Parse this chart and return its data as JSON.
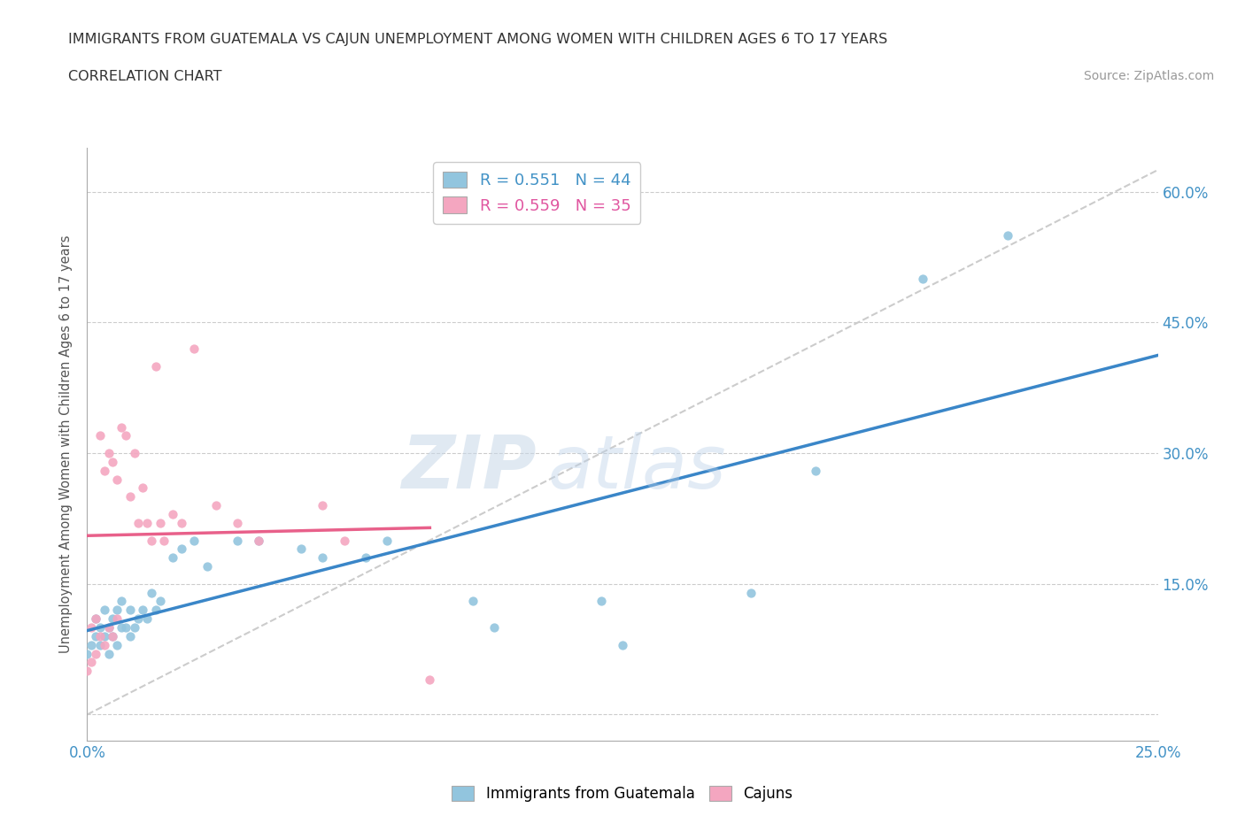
{
  "title_line1": "IMMIGRANTS FROM GUATEMALA VS CAJUN UNEMPLOYMENT AMONG WOMEN WITH CHILDREN AGES 6 TO 17 YEARS",
  "title_line2": "CORRELATION CHART",
  "source_text": "Source: ZipAtlas.com",
  "ylabel": "Unemployment Among Women with Children Ages 6 to 17 years",
  "xlim": [
    0.0,
    0.25
  ],
  "ylim": [
    -0.03,
    0.65
  ],
  "xticks": [
    0.0,
    0.05,
    0.1,
    0.15,
    0.2,
    0.25
  ],
  "xtick_labels": [
    "0.0%",
    "",
    "",
    "",
    "",
    "25.0%"
  ],
  "yticks": [
    0.0,
    0.15,
    0.3,
    0.45,
    0.6
  ],
  "ytick_labels": [
    "",
    "15.0%",
    "30.0%",
    "45.0%",
    "60.0%"
  ],
  "legend_entry1": "R = 0.551   N = 44",
  "legend_entry2": "R = 0.559   N = 35",
  "color_blue": "#92c5de",
  "color_pink": "#f4a6c0",
  "color_trendline_blue": "#3a86c8",
  "color_trendline_pink": "#e8608a",
  "color_trendline_diag": "#cccccc",
  "watermark_zip": "ZIP",
  "watermark_atlas": "atlas",
  "guatemala_x": [
    0.0,
    0.001,
    0.002,
    0.002,
    0.003,
    0.003,
    0.004,
    0.004,
    0.005,
    0.005,
    0.006,
    0.006,
    0.007,
    0.007,
    0.008,
    0.008,
    0.009,
    0.01,
    0.01,
    0.011,
    0.012,
    0.013,
    0.014,
    0.015,
    0.016,
    0.017,
    0.02,
    0.022,
    0.025,
    0.028,
    0.035,
    0.04,
    0.05,
    0.055,
    0.065,
    0.07,
    0.09,
    0.095,
    0.12,
    0.125,
    0.155,
    0.17,
    0.195,
    0.215
  ],
  "guatemala_y": [
    0.07,
    0.08,
    0.09,
    0.11,
    0.08,
    0.1,
    0.09,
    0.12,
    0.07,
    0.1,
    0.09,
    0.11,
    0.08,
    0.12,
    0.1,
    0.13,
    0.1,
    0.12,
    0.09,
    0.1,
    0.11,
    0.12,
    0.11,
    0.14,
    0.12,
    0.13,
    0.18,
    0.19,
    0.2,
    0.17,
    0.2,
    0.2,
    0.19,
    0.18,
    0.18,
    0.2,
    0.13,
    0.1,
    0.13,
    0.08,
    0.14,
    0.28,
    0.5,
    0.55
  ],
  "cajun_x": [
    0.0,
    0.001,
    0.001,
    0.002,
    0.002,
    0.003,
    0.003,
    0.004,
    0.004,
    0.005,
    0.005,
    0.006,
    0.006,
    0.007,
    0.007,
    0.008,
    0.009,
    0.01,
    0.011,
    0.012,
    0.013,
    0.014,
    0.015,
    0.016,
    0.017,
    0.018,
    0.02,
    0.022,
    0.025,
    0.03,
    0.035,
    0.04,
    0.055,
    0.06,
    0.08
  ],
  "cajun_y": [
    0.05,
    0.06,
    0.1,
    0.07,
    0.11,
    0.09,
    0.32,
    0.08,
    0.28,
    0.1,
    0.3,
    0.09,
    0.29,
    0.11,
    0.27,
    0.33,
    0.32,
    0.25,
    0.3,
    0.22,
    0.26,
    0.22,
    0.2,
    0.4,
    0.22,
    0.2,
    0.23,
    0.22,
    0.42,
    0.24,
    0.22,
    0.2,
    0.24,
    0.2,
    0.04
  ]
}
